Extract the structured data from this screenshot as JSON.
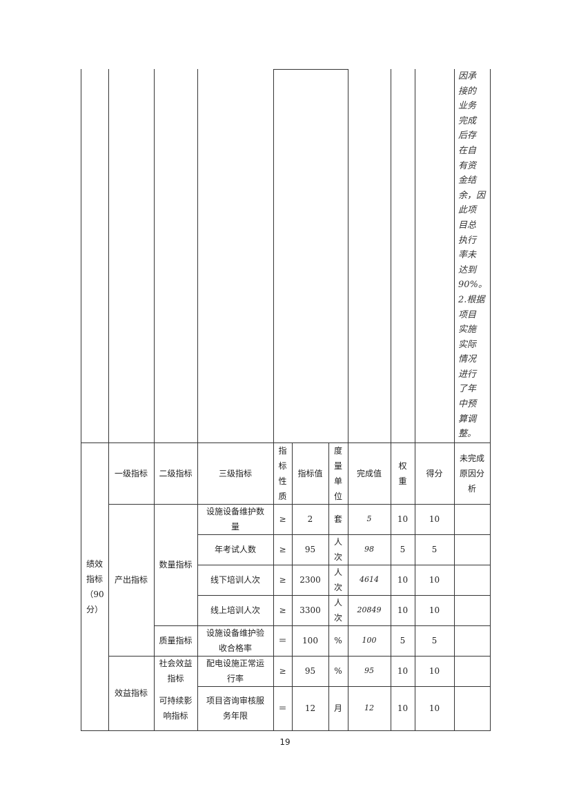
{
  "continuation_note": "因承\n接的\n业务\n完成\n后存\n在自\n有资\n金结\n余，因\n此项\n目总\n执行\n率未\n达到\n90%。\n2.根据\n项目\n实施\n实际\n情况\n进行\n了年\n中预\n算调\n整。",
  "table": {
    "section_label": "绩效指标（90分）",
    "headers": [
      "一级指标",
      "二级指标",
      "三级指标",
      "指标性质",
      "指标值",
      "度量单位",
      "完成值",
      "权重",
      "得分",
      "未完成原因分析"
    ],
    "level1": [
      "产出指标",
      "效益指标"
    ],
    "level2": [
      "数量指标",
      "质量指标",
      "社会效益指标",
      "可持续影响指标"
    ],
    "rows": [
      {
        "name": "设施设备维护数量",
        "op": "≥",
        "target": "2",
        "unit": "套",
        "actual": "5",
        "weight": "10",
        "score": "10",
        "reason": ""
      },
      {
        "name": "年考试人数",
        "op": "≥",
        "target": "95",
        "unit": "人次",
        "actual": "98",
        "weight": "5",
        "score": "5",
        "reason": ""
      },
      {
        "name": "线下培训人次",
        "op": "≥",
        "target": "2300",
        "unit": "人次",
        "actual": "4614",
        "weight": "10",
        "score": "10",
        "reason": ""
      },
      {
        "name": "线上培训人次",
        "op": "≥",
        "target": "3300",
        "unit": "人次",
        "actual": "20849",
        "weight": "10",
        "score": "10",
        "reason": ""
      },
      {
        "name": "设施设备维护验收合格率",
        "op": "＝",
        "target": "100",
        "unit": "%",
        "actual": "100",
        "weight": "5",
        "score": "5",
        "reason": ""
      },
      {
        "name": "配电设施正常运行率",
        "op": "≥",
        "target": "95",
        "unit": "%",
        "actual": "95",
        "weight": "10",
        "score": "10",
        "reason": ""
      },
      {
        "name": "项目咨询审核服务年限",
        "op": "＝",
        "target": "12",
        "unit": "月",
        "actual": "12",
        "weight": "10",
        "score": "10",
        "reason": ""
      }
    ]
  },
  "page_number": "19"
}
